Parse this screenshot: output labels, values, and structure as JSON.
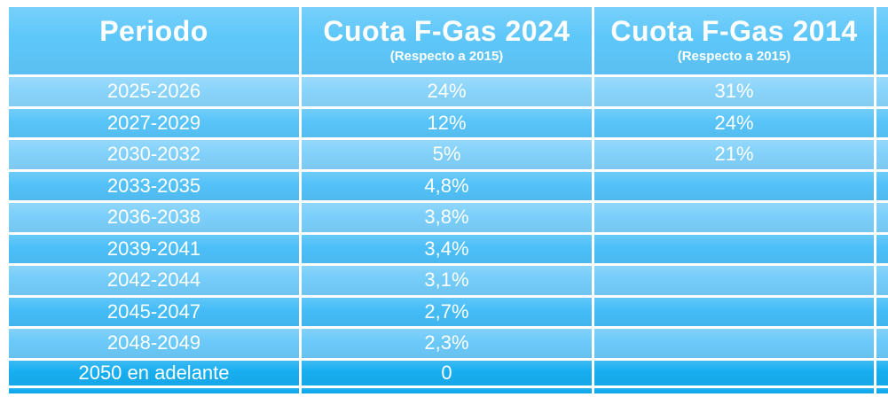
{
  "table": {
    "columns": [
      {
        "title": "Periodo",
        "subtitle": ""
      },
      {
        "title": "Cuota F-Gas 2024",
        "subtitle": "(Respecto a 2015)"
      },
      {
        "title": "Cuota F-Gas 2014",
        "subtitle": "(Respecto a 2015)"
      }
    ],
    "rows": [
      {
        "period": "2025-2026",
        "cuota_2024": "24%",
        "cuota_2014": "31%"
      },
      {
        "period": "2027-2029",
        "cuota_2024": "12%",
        "cuota_2014": "24%"
      },
      {
        "period": "2030-2032",
        "cuota_2024": "5%",
        "cuota_2014": "21%"
      },
      {
        "period": "2033-2035",
        "cuota_2024": "4,8%",
        "cuota_2014": ""
      },
      {
        "period": "2036-2038",
        "cuota_2024": "3,8%",
        "cuota_2014": ""
      },
      {
        "period": "2039-2041",
        "cuota_2024": "3,4%",
        "cuota_2014": ""
      },
      {
        "period": "2042-2044",
        "cuota_2024": "3,1%",
        "cuota_2014": ""
      },
      {
        "period": "2045-2047",
        "cuota_2024": "2,7%",
        "cuota_2014": ""
      },
      {
        "period": "2048-2049",
        "cuota_2024": "2,3%",
        "cuota_2014": ""
      },
      {
        "period": "2050 en adelante",
        "cuota_2024": "0",
        "cuota_2014": ""
      }
    ]
  },
  "colors": {
    "header": "#5EC7FA",
    "row_shades": [
      "#89D4FB",
      "#58C4F9",
      "#82D1FA",
      "#52C1F8",
      "#7BCFFA",
      "#4CBFF8",
      "#74CCF9",
      "#44BCF7",
      "#6BC9F9",
      "#17AEF0"
    ],
    "cutoff_strip": "#10ABEF",
    "gridline": "#FFFFFF",
    "text": "#FFFFFF"
  },
  "chart_data": {
    "type": "table",
    "title": "",
    "columns": [
      "Periodo",
      "Cuota F-Gas 2024 (Respecto a 2015)",
      "Cuota F-Gas 2014 (Respecto a 2015)"
    ],
    "rows": [
      [
        "2025-2026",
        "24%",
        "31%"
      ],
      [
        "2027-2029",
        "12%",
        "24%"
      ],
      [
        "2030-2032",
        "5%",
        "21%"
      ],
      [
        "2033-2035",
        "4,8%",
        ""
      ],
      [
        "2036-2038",
        "3,8%",
        ""
      ],
      [
        "2039-2041",
        "3,4%",
        ""
      ],
      [
        "2042-2044",
        "3,1%",
        ""
      ],
      [
        "2045-2047",
        "2,7%",
        ""
      ],
      [
        "2048-2049",
        "2,3%",
        ""
      ],
      [
        "2050 en adelante",
        "0",
        ""
      ]
    ]
  }
}
